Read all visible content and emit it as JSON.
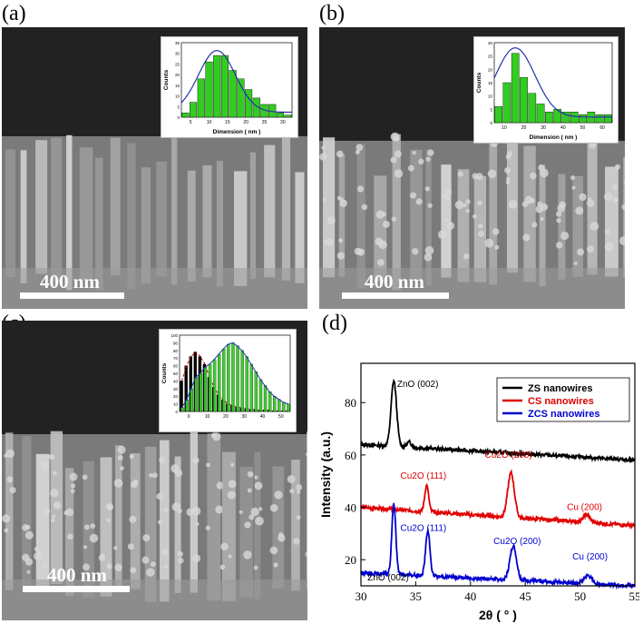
{
  "panels": [
    {
      "label": "(a)",
      "scale": "400 nm",
      "inset_xlabel": "Dimension ( nm )",
      "inset_ylabel": "Counts"
    },
    {
      "label": "(b)",
      "scale": "400 nm",
      "inset_xlabel": "Dimension ( nm )",
      "inset_ylabel": "Counts"
    },
    {
      "label": "(c)",
      "scale": "400 nm",
      "inset_xlabel": "",
      "inset_ylabel": "Counts"
    },
    {
      "label": "(d)"
    }
  ],
  "colors": {
    "zs": "#000000",
    "cs": "#e00000",
    "zcs": "#0000d0",
    "bars": "#33cc22",
    "fit": "#2233aa",
    "sem_bg": "#222222"
  },
  "chart_data": [
    {
      "type": "bar",
      "title": "",
      "xlabel": "Dimension ( nm )",
      "ylabel": "Counts",
      "categories": [
        3,
        6,
        9,
        12,
        15,
        18,
        21,
        24,
        27,
        30,
        33,
        36,
        39,
        42
      ],
      "values": [
        2,
        7,
        18,
        26,
        29,
        29,
        22,
        18,
        13,
        9,
        6,
        6,
        2,
        1
      ],
      "fit": "gaussian",
      "xticks": [
        "5",
        "10",
        "15",
        "20",
        "25",
        "30"
      ],
      "yticks": [
        "0",
        "5",
        "10",
        "15",
        "20",
        "25",
        "30",
        "35"
      ],
      "ylim": [
        0,
        35
      ]
    },
    {
      "type": "bar",
      "title": "",
      "xlabel": "Dimension ( nm )",
      "ylabel": "Counts",
      "categories": [
        4,
        8,
        12,
        16,
        20,
        24,
        28,
        32,
        36,
        40,
        44,
        48,
        52,
        56
      ],
      "values": [
        6,
        15,
        26,
        17,
        11,
        7,
        4,
        5,
        4,
        4,
        3,
        4,
        3,
        3
      ],
      "fit": "gaussian",
      "xticks": [
        "10",
        "20",
        "30",
        "40",
        "50",
        "60"
      ],
      "yticks": [
        "0",
        "5",
        "10",
        "15",
        "20",
        "25",
        "30"
      ],
      "ylim": [
        0,
        30
      ]
    },
    {
      "type": "bar",
      "title": "",
      "xlabel": "",
      "ylabel": "Counts",
      "categories": [
        2,
        4,
        6,
        8,
        10,
        12,
        14,
        16,
        18,
        20,
        22,
        24,
        26,
        28,
        30,
        32,
        34,
        36,
        38,
        40,
        42,
        44,
        46,
        48
      ],
      "series": [
        {
          "name": "",
          "color": "black",
          "values": [
            40,
            60,
            72,
            78,
            72,
            62,
            45,
            32,
            22,
            15,
            10,
            8,
            6,
            5,
            4,
            3,
            3,
            2,
            2,
            2,
            1,
            1,
            1,
            1
          ]
        },
        {
          "name": "",
          "color": "green",
          "values": [
            5,
            15,
            30,
            45,
            50,
            58,
            62,
            68,
            75,
            82,
            88,
            90,
            86,
            80,
            72,
            62,
            52,
            42,
            34,
            26,
            20,
            16,
            12,
            10
          ]
        }
      ],
      "xticks": [
        "0",
        "10",
        "20",
        "30",
        "40",
        "50"
      ],
      "yticks": [
        "0",
        "10",
        "20",
        "30",
        "40",
        "50",
        "60",
        "70",
        "80",
        "90",
        "100"
      ],
      "ylim": [
        0,
        100
      ]
    },
    {
      "type": "line",
      "title": "",
      "xlabel": "2θ ( ° )",
      "ylabel": "Intensity (a.u.)",
      "xlim": [
        30,
        55
      ],
      "ylim": [
        10,
        95
      ],
      "xticks": [
        "30",
        "35",
        "40",
        "45",
        "50",
        "55"
      ],
      "yticks": [
        "20",
        "40",
        "60",
        "80"
      ],
      "legend_position": "top-right",
      "series": [
        {
          "name": "ZS nanowires",
          "color": "black",
          "baseline_start": 64,
          "baseline_end": 58,
          "peaks": [
            {
              "x": 33.0,
              "h": 25,
              "w": 0.25
            },
            {
              "x": 34.4,
              "h": 2,
              "w": 0.2
            }
          ]
        },
        {
          "name": "CS nanowires",
          "color": "red",
          "baseline_start": 40,
          "baseline_end": 33,
          "peaks": [
            {
              "x": 36.0,
              "h": 10,
              "w": 0.18
            },
            {
              "x": 43.7,
              "h": 17,
              "w": 0.3
            },
            {
              "x": 50.6,
              "h": 3,
              "w": 0.3
            }
          ]
        },
        {
          "name": "ZCS nanowires",
          "color": "blue",
          "baseline_start": 15,
          "baseline_end": 10,
          "peaks": [
            {
              "x": 33.0,
              "h": 27,
              "w": 0.18
            },
            {
              "x": 36.1,
              "h": 17,
              "w": 0.2
            },
            {
              "x": 43.9,
              "h": 13,
              "w": 0.3
            },
            {
              "x": 50.7,
              "h": 3,
              "w": 0.35
            }
          ]
        }
      ],
      "annotations": [
        {
          "text": "ZnO (002)",
          "x": 33.3,
          "y": 86,
          "color": "black"
        },
        {
          "text": "Cu2O (111)",
          "x": 33.6,
          "y": 51,
          "color": "red"
        },
        {
          "text": "Cu2O (200)",
          "x": 41.3,
          "y": 59,
          "color": "red"
        },
        {
          "text": "Cu (200)",
          "x": 48.8,
          "y": 39,
          "color": "red"
        },
        {
          "text": "Cu2O (111)",
          "x": 33.6,
          "y": 31,
          "color": "blue"
        },
        {
          "text": "Cu2O (200)",
          "x": 42.1,
          "y": 26,
          "color": "blue"
        },
        {
          "text": "Cu (200)",
          "x": 49.3,
          "y": 20,
          "color": "blue"
        },
        {
          "text": "ZnO (002)",
          "x": 30.6,
          "y": 12,
          "color": "black"
        }
      ]
    }
  ]
}
